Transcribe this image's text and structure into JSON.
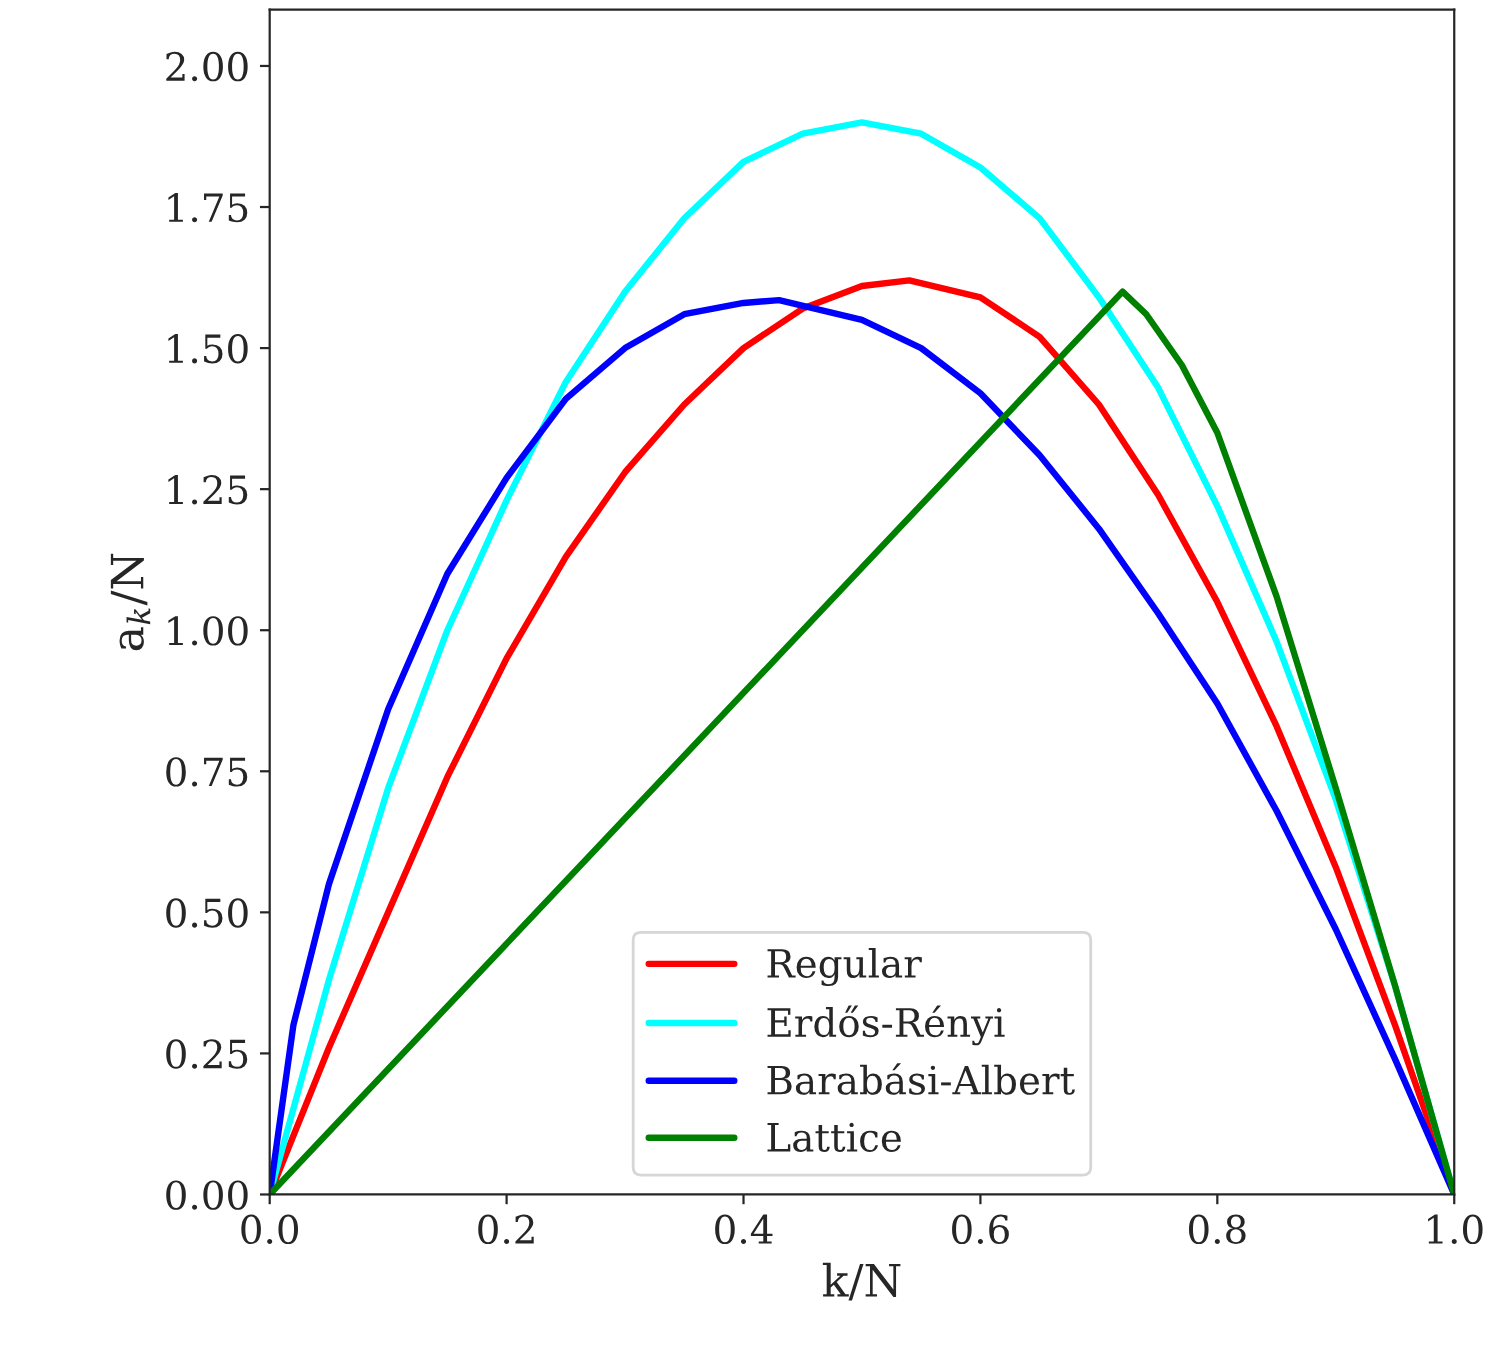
{
  "chart_data": {
    "type": "line",
    "xlabel": "k/N",
    "ylabel": "a$_{k}$/N",
    "xlim": [
      0,
      1
    ],
    "ylim": [
      0,
      2.1
    ],
    "xticks": [
      {
        "value": 0,
        "label": "0.0"
      },
      {
        "value": 0.2,
        "label": "0.2"
      },
      {
        "value": 0.4,
        "label": "0.4"
      },
      {
        "value": 0.6,
        "label": "0.6"
      },
      {
        "value": 0.8,
        "label": "0.8"
      },
      {
        "value": 1,
        "label": "1.0"
      }
    ],
    "yticks": [
      {
        "value": 0,
        "label": "0.00"
      },
      {
        "value": 0.25,
        "label": "0.25"
      },
      {
        "value": 0.5,
        "label": "0.50"
      },
      {
        "value": 0.75,
        "label": "0.75"
      },
      {
        "value": 1,
        "label": "1.00"
      },
      {
        "value": 1.25,
        "label": "1.25"
      },
      {
        "value": 1.5,
        "label": "1.50"
      },
      {
        "value": 1.75,
        "label": "1.75"
      },
      {
        "value": 2,
        "label": "2.00"
      }
    ],
    "grid": false,
    "legend": "bottom",
    "marker": "none",
    "line_style": "solid",
    "series": [
      {
        "name": "Regular",
        "color": "#ff0000",
        "x": [
          0,
          0.05,
          0.1,
          0.15,
          0.2,
          0.25,
          0.3,
          0.35,
          0.4,
          0.45,
          0.5,
          0.54,
          0.6,
          0.65,
          0.7,
          0.75,
          0.8,
          0.85,
          0.9,
          0.95,
          1.0
        ],
        "values": [
          0,
          0.26,
          0.5,
          0.74,
          0.95,
          1.13,
          1.28,
          1.4,
          1.5,
          1.57,
          1.61,
          1.62,
          1.59,
          1.52,
          1.4,
          1.24,
          1.05,
          0.83,
          0.58,
          0.3,
          0
        ]
      },
      {
        "name": "Erdős-Rényi",
        "color": "#00ffff",
        "x": [
          0,
          0.05,
          0.1,
          0.15,
          0.2,
          0.25,
          0.3,
          0.35,
          0.4,
          0.45,
          0.5,
          0.55,
          0.6,
          0.65,
          0.7,
          0.75,
          0.8,
          0.85,
          0.9,
          0.95,
          1.0
        ],
        "values": [
          0,
          0.38,
          0.72,
          1.0,
          1.23,
          1.44,
          1.6,
          1.73,
          1.83,
          1.88,
          1.9,
          1.88,
          1.82,
          1.73,
          1.59,
          1.43,
          1.22,
          0.98,
          0.7,
          0.37,
          0
        ]
      },
      {
        "name": "Barabási-Albert",
        "color": "#0000ff",
        "x": [
          0,
          0.02,
          0.05,
          0.1,
          0.15,
          0.2,
          0.25,
          0.3,
          0.35,
          0.4,
          0.43,
          0.5,
          0.55,
          0.6,
          0.65,
          0.7,
          0.75,
          0.8,
          0.85,
          0.9,
          0.95,
          1.0
        ],
        "values": [
          0,
          0.3,
          0.55,
          0.86,
          1.1,
          1.27,
          1.41,
          1.5,
          1.56,
          1.58,
          1.585,
          1.55,
          1.5,
          1.42,
          1.31,
          1.18,
          1.03,
          0.87,
          0.68,
          0.47,
          0.24,
          0
        ]
      },
      {
        "name": "Lattice",
        "color": "#008000",
        "x": [
          0,
          0.72,
          0.74,
          0.77,
          0.8,
          0.85,
          0.9,
          0.95,
          1.0
        ],
        "values": [
          0,
          1.6,
          1.56,
          1.47,
          1.35,
          1.06,
          0.72,
          0.37,
          0
        ]
      }
    ]
  }
}
